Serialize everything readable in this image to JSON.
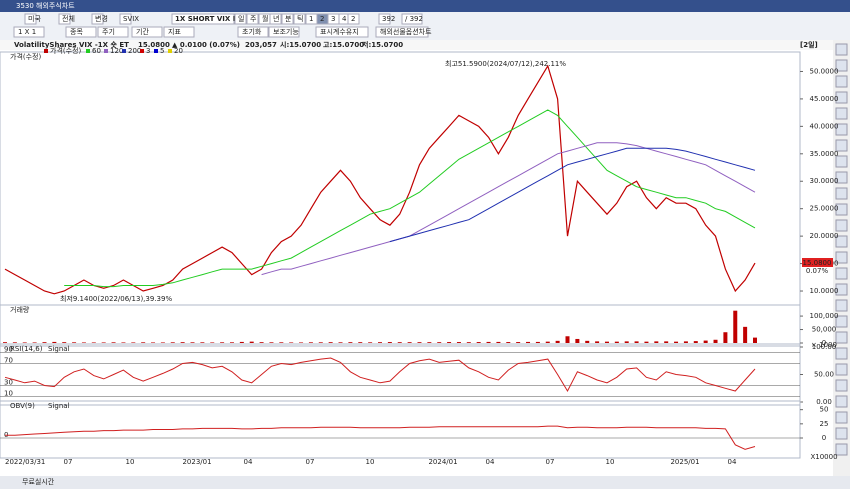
{
  "window": {
    "title": "3530 해외주식차트"
  },
  "toolbar": {
    "row1": [
      "미국",
      "전체",
      "변경",
      "SVIX",
      "1X SHORT VIX ETF",
      "일",
      "주",
      "월",
      "년",
      "분",
      "틱",
      "1",
      "2",
      "3",
      "4",
      "2",
      "392",
      "/ 392"
    ],
    "row2": [
      "1 X 1",
      "종목",
      "주기",
      "기간",
      "지표",
      "초기화",
      "보조기능",
      "표시계수유지",
      "해외선물옵션차트"
    ]
  },
  "info": {
    "name": "VolatilityShares VIX -1X 숏 ET",
    "price": "15.0800",
    "change": "▲ 0.0100 (0.07%)",
    "volume": "203,057",
    "open": "시:15.0700",
    "high": "고:15.0700",
    "low": "저:15.0700",
    "period": "[2일]"
  },
  "status": "무료실시간",
  "x_labels": [
    "2022/03/31",
    "07",
    "10",
    "2023/01",
    "04",
    "07",
    "10",
    "2024/01",
    "04",
    "07",
    "10",
    "2025/01",
    "04"
  ],
  "chart_data": [
    {
      "type": "line",
      "title": "가격(수정)",
      "ylim": [
        8,
        53
      ],
      "yticks": [
        {
          "value": 10,
          "label": "10.0000"
        },
        {
          "value": 15,
          "label": "15.0000"
        },
        {
          "value": 20,
          "label": "20.0000"
        },
        {
          "value": 25,
          "label": "25.0000"
        },
        {
          "value": 30,
          "label": "30.0000"
        },
        {
          "value": 35,
          "label": "35.0000"
        },
        {
          "value": 40,
          "label": "40.0000"
        },
        {
          "value": 45,
          "label": "45.0000"
        },
        {
          "value": 50,
          "label": "50.0000"
        }
      ],
      "other_averages": [
        {
          "name": "3",
          "color": "#d00000"
        },
        {
          "name": "5",
          "color": "#0000d0"
        },
        {
          "name": "20",
          "color": "#e0d000"
        }
      ],
      "series": [
        {
          "name": "가격(수정)",
          "color": "#c00000",
          "values": [
            14,
            13,
            12,
            11,
            10,
            9.5,
            10,
            11,
            12,
            11,
            10.5,
            11,
            12,
            11,
            10,
            10.5,
            11,
            12,
            14,
            15,
            16,
            17,
            18,
            17,
            15,
            13,
            14,
            17,
            19,
            20,
            22,
            25,
            28,
            30,
            32,
            30,
            27,
            25,
            23,
            22,
            24,
            28,
            33,
            36,
            38,
            40,
            42,
            41,
            40,
            38,
            35,
            38,
            42,
            45,
            48,
            51,
            45,
            20,
            30,
            28,
            26,
            24,
            26,
            29,
            30,
            27,
            25,
            27,
            26,
            26,
            25,
            22,
            20,
            14,
            10,
            12,
            15.08
          ]
        },
        {
          "name": "60",
          "color": "#22cc22",
          "values": [
            null,
            null,
            null,
            null,
            null,
            null,
            11,
            11,
            11,
            11,
            10.8,
            10.8,
            11,
            11,
            11,
            11,
            11.2,
            11.5,
            12,
            12.5,
            13,
            13.5,
            14,
            14,
            14,
            14,
            14.5,
            15,
            15.5,
            16,
            17,
            18,
            19,
            20,
            21,
            22,
            23,
            24,
            24.5,
            25,
            26,
            27,
            28,
            29.5,
            31,
            32.5,
            34,
            35,
            36,
            37,
            38,
            39,
            40,
            41,
            42,
            43,
            42,
            40,
            38,
            36,
            34,
            32,
            31,
            30,
            29,
            28.5,
            28,
            27.5,
            27,
            27,
            26.5,
            26,
            25,
            24.5,
            23.5,
            22.5,
            21.5
          ]
        },
        {
          "name": "120",
          "color": "#9060c0",
          "values": [
            null,
            null,
            null,
            null,
            null,
            null,
            null,
            null,
            null,
            null,
            null,
            null,
            null,
            null,
            null,
            null,
            null,
            null,
            null,
            null,
            null,
            null,
            null,
            null,
            null,
            null,
            13,
            13.5,
            14,
            14,
            14.5,
            15,
            15.5,
            16,
            16.5,
            17,
            17.5,
            18,
            18.5,
            19,
            19.5,
            20,
            21,
            22,
            23,
            24,
            25,
            26,
            27,
            28,
            29,
            30,
            31,
            32,
            33,
            34,
            35,
            35.5,
            36,
            36.5,
            37,
            37,
            37,
            36.8,
            36.5,
            36,
            35.5,
            35,
            34.5,
            34,
            33.5,
            33,
            32,
            31,
            30,
            29,
            28
          ]
        },
        {
          "name": "200",
          "color": "#2030b0",
          "values": [
            null,
            null,
            null,
            null,
            null,
            null,
            null,
            null,
            null,
            null,
            null,
            null,
            null,
            null,
            null,
            null,
            null,
            null,
            null,
            null,
            null,
            null,
            null,
            null,
            null,
            null,
            null,
            null,
            null,
            null,
            null,
            null,
            null,
            null,
            null,
            null,
            null,
            null,
            null,
            19,
            19.5,
            20,
            20.5,
            21,
            21.5,
            22,
            22.5,
            23,
            24,
            25,
            26,
            27,
            28,
            29,
            30,
            31,
            32,
            33,
            33.5,
            34,
            34.5,
            35,
            35.5,
            36,
            36,
            36,
            36,
            36,
            35.8,
            35.5,
            35,
            34.5,
            34,
            33.5,
            33,
            32.5,
            32
          ]
        }
      ],
      "annotations": [
        "최고51.5900(2024/07/12),242.11%",
        "최저9.1400(2022/06/13),39.39%"
      ],
      "last_label": "15.0800",
      "last_change": "0.07%"
    },
    {
      "type": "bar",
      "title": "거래량",
      "ylim": [
        0,
        130000
      ],
      "unit": "× 1000",
      "yticks": [
        {
          "value": 100000,
          "label": "100,000"
        },
        {
          "value": 50000,
          "label": "50,000"
        },
        0
      ],
      "series": [
        {
          "name": "거래량",
          "color": "#c00000",
          "values": [
            3000,
            2500,
            2000,
            2000,
            3000,
            4000,
            3000,
            2500,
            2000,
            2000,
            2000,
            2500,
            2000,
            2000,
            2500,
            2000,
            2000,
            2500,
            3000,
            2500,
            2500,
            2000,
            2500,
            2500,
            4000,
            5000,
            3000,
            2500,
            2500,
            2000,
            2000,
            2500,
            2500,
            3000,
            2500,
            3000,
            3000,
            2500,
            3000,
            3500,
            3000,
            3000,
            3000,
            3000,
            3000,
            3500,
            3500,
            3000,
            3500,
            4000,
            4000,
            3500,
            3500,
            4000,
            4000,
            5000,
            8000,
            25000,
            15000,
            8000,
            6000,
            5000,
            5000,
            6000,
            6000,
            5000,
            6000,
            6000,
            5000,
            6000,
            7000,
            9000,
            12000,
            40000,
            120000,
            60000,
            20000
          ]
        }
      ]
    },
    {
      "type": "line",
      "title": "RSI(14,6)",
      "signal_label": "Signal",
      "ylim": [
        0,
        100
      ],
      "levels": [
        90,
        70,
        30,
        10
      ],
      "yticks": [
        {
          "value": 100,
          "label": "100.00"
        },
        {
          "value": 50,
          "label": "50.00"
        },
        {
          "value": 0,
          "label": "0.00"
        }
      ],
      "series": [
        {
          "name": "RSI",
          "color": "#d02020",
          "values": [
            45,
            40,
            35,
            38,
            30,
            28,
            45,
            55,
            60,
            48,
            42,
            50,
            58,
            45,
            38,
            45,
            52,
            60,
            70,
            72,
            68,
            62,
            65,
            55,
            40,
            35,
            50,
            65,
            70,
            68,
            72,
            75,
            78,
            80,
            72,
            55,
            45,
            40,
            35,
            38,
            55,
            70,
            75,
            78,
            72,
            74,
            76,
            62,
            55,
            45,
            40,
            58,
            70,
            72,
            75,
            78,
            50,
            20,
            55,
            48,
            40,
            35,
            45,
            60,
            62,
            45,
            40,
            55,
            50,
            48,
            45,
            35,
            30,
            25,
            20,
            40,
            60
          ]
        }
      ]
    },
    {
      "type": "line",
      "title": "OBV(9)",
      "signal_label": "Signal",
      "ylim": [
        -30,
        60
      ],
      "unit": "X10000",
      "levels": [
        0
      ],
      "yticks": [
        50,
        25,
        0
      ],
      "series": [
        {
          "name": "OBV",
          "color": "#d02020",
          "values": [
            5,
            5,
            6,
            7,
            8,
            9,
            10,
            11,
            12,
            12,
            13,
            13,
            14,
            14,
            14,
            15,
            15,
            15,
            16,
            16,
            17,
            17,
            17,
            17,
            16,
            16,
            17,
            17,
            18,
            18,
            18,
            18,
            19,
            19,
            19,
            19,
            18,
            18,
            18,
            18,
            18,
            19,
            19,
            19,
            20,
            20,
            20,
            20,
            20,
            20,
            20,
            20,
            20,
            20,
            20,
            21,
            21,
            18,
            19,
            19,
            18,
            18,
            18,
            19,
            19,
            19,
            18,
            18,
            18,
            18,
            18,
            17,
            17,
            16,
            -12,
            -20,
            -15
          ]
        }
      ]
    }
  ]
}
